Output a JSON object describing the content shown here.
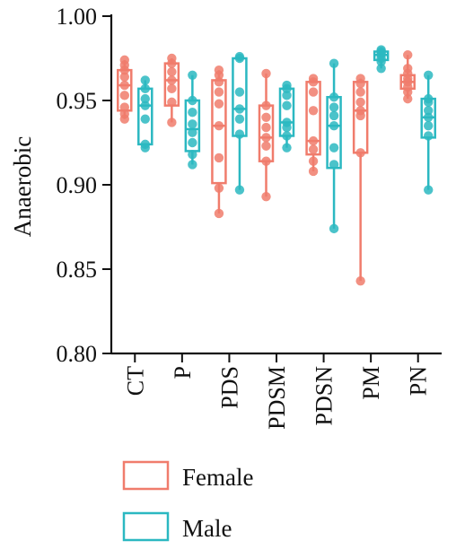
{
  "chart_data": {
    "type": "box",
    "title": "",
    "xlabel": "",
    "ylabel": "Anaerobic",
    "ylim": [
      0.8,
      1.0
    ],
    "yticks": [
      "0.80",
      "0.85",
      "0.90",
      "0.95",
      "1.00"
    ],
    "ytick_values": [
      0.8,
      0.85,
      0.9,
      0.95,
      1.0
    ],
    "categories": [
      "CT",
      "P",
      "PDS",
      "PDSM",
      "PDSN",
      "PM",
      "PN"
    ],
    "legend_position": "bottom",
    "series": [
      {
        "name": "Female",
        "color": "#F07C6C",
        "boxes": [
          {
            "min": 0.939,
            "q1": 0.944,
            "median": 0.959,
            "q3": 0.968,
            "max": 0.974
          },
          {
            "min": 0.937,
            "q1": 0.947,
            "median": 0.962,
            "q3": 0.972,
            "max": 0.975
          },
          {
            "min": 0.883,
            "q1": 0.901,
            "median": 0.935,
            "q3": 0.962,
            "max": 0.968
          },
          {
            "min": 0.893,
            "q1": 0.914,
            "median": 0.928,
            "q3": 0.947,
            "max": 0.966
          },
          {
            "min": 0.908,
            "q1": 0.918,
            "median": 0.926,
            "q3": 0.961,
            "max": 0.963
          },
          {
            "min": 0.843,
            "q1": 0.919,
            "median": 0.944,
            "q3": 0.961,
            "max": 0.963
          },
          {
            "min": 0.951,
            "q1": 0.957,
            "median": 0.961,
            "q3": 0.965,
            "max": 0.977
          }
        ],
        "points": [
          [
            0.939,
            0.942,
            0.946,
            0.953,
            0.959,
            0.964,
            0.968,
            0.971,
            0.974
          ],
          [
            0.937,
            0.949,
            0.957,
            0.962,
            0.967,
            0.972,
            0.975
          ],
          [
            0.883,
            0.898,
            0.916,
            0.935,
            0.948,
            0.955,
            0.961,
            0.965,
            0.968
          ],
          [
            0.893,
            0.914,
            0.923,
            0.928,
            0.934,
            0.94,
            0.947,
            0.966
          ],
          [
            0.908,
            0.914,
            0.921,
            0.926,
            0.944,
            0.955,
            0.961,
            0.963
          ],
          [
            0.843,
            0.919,
            0.941,
            0.944,
            0.949,
            0.955,
            0.96,
            0.963
          ],
          [
            0.951,
            0.955,
            0.958,
            0.961,
            0.963,
            0.966,
            0.969,
            0.977
          ]
        ]
      },
      {
        "name": "Male",
        "color": "#2BB8C1",
        "boxes": [
          {
            "min": 0.922,
            "q1": 0.924,
            "median": 0.947,
            "q3": 0.957,
            "max": 0.962
          },
          {
            "min": 0.912,
            "q1": 0.92,
            "median": 0.933,
            "q3": 0.95,
            "max": 0.965
          },
          {
            "min": 0.897,
            "q1": 0.929,
            "median": 0.945,
            "q3": 0.975,
            "max": 0.976
          },
          {
            "min": 0.922,
            "q1": 0.929,
            "median": 0.937,
            "q3": 0.957,
            "max": 0.959
          },
          {
            "min": 0.874,
            "q1": 0.91,
            "median": 0.935,
            "q3": 0.952,
            "max": 0.972
          },
          {
            "min": 0.969,
            "q1": 0.974,
            "median": 0.977,
            "q3": 0.979,
            "max": 0.98
          },
          {
            "min": 0.897,
            "q1": 0.928,
            "median": 0.94,
            "q3": 0.951,
            "max": 0.965
          }
        ],
        "points": [
          [
            0.922,
            0.924,
            0.939,
            0.947,
            0.951,
            0.957,
            0.962
          ],
          [
            0.912,
            0.918,
            0.925,
            0.931,
            0.936,
            0.943,
            0.95,
            0.965
          ],
          [
            0.897,
            0.93,
            0.939,
            0.945,
            0.955,
            0.975,
            0.976
          ],
          [
            0.922,
            0.929,
            0.934,
            0.937,
            0.947,
            0.953,
            0.957,
            0.959
          ],
          [
            0.874,
            0.912,
            0.922,
            0.935,
            0.941,
            0.946,
            0.952,
            0.972
          ],
          [
            0.969,
            0.973,
            0.975,
            0.977,
            0.978,
            0.979,
            0.98
          ],
          [
            0.897,
            0.929,
            0.935,
            0.94,
            0.944,
            0.949,
            0.951,
            0.965
          ]
        ]
      }
    ]
  }
}
